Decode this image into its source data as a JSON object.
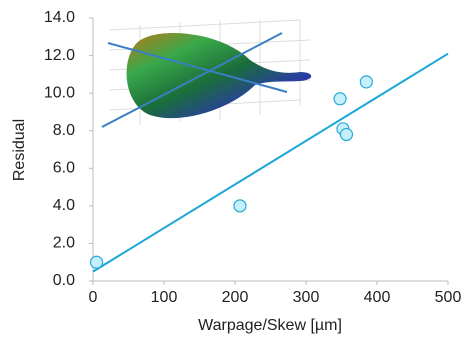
{
  "chart_data": {
    "type": "scatter",
    "x_label": "Warpage/Skew [µm]",
    "y_label": "Residual",
    "series": [
      {
        "x": [
          5,
          207,
          348,
          352,
          357,
          385
        ],
        "values": [
          1.0,
          4.0,
          9.7,
          8.1,
          7.8,
          10.6
        ],
        "color": "#29a8d8"
      }
    ],
    "trendline": {
      "x": [
        0,
        500
      ],
      "values": [
        0.5,
        12.1
      ],
      "color": "#1aa6d6"
    },
    "xlim": [
      0,
      500
    ],
    "xticks": [
      0,
      100,
      200,
      300,
      400,
      500
    ],
    "ylim": [
      0,
      14
    ],
    "yticks": [
      {
        "value": 0,
        "label": "0.0"
      },
      {
        "value": 2,
        "label": "2.0"
      },
      {
        "value": 4,
        "label": "4.0"
      },
      {
        "value": 6,
        "label": "6.0"
      },
      {
        "value": 8,
        "label": "8.0"
      },
      {
        "value": 10,
        "label": "10.0"
      },
      {
        "value": 12,
        "label": "12.0"
      },
      {
        "value": 14,
        "label": "14.0"
      }
    ],
    "grid": false
  }
}
